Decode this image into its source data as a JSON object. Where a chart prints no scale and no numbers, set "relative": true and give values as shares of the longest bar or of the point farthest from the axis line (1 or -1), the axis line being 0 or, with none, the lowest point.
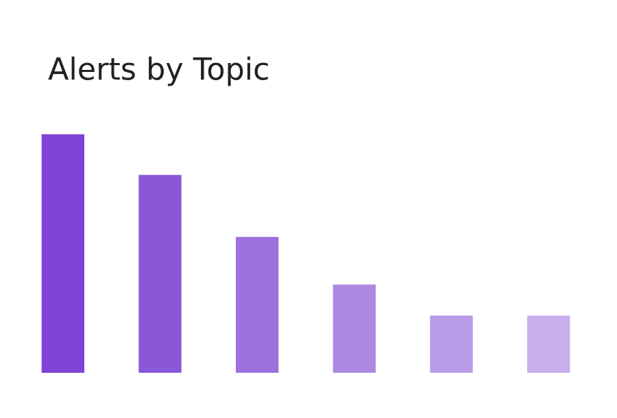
{
  "chart_data": {
    "type": "bar",
    "title": "Alerts by Topic",
    "relative": true,
    "categories": [
      null,
      null,
      null,
      null,
      null,
      null
    ],
    "values": [
      1,
      0.83,
      0.57,
      0.37,
      0.24,
      0.24
    ],
    "colors": [
      "#7f43d5",
      "#8b57d9",
      "#9c70dd",
      "#ac88e2",
      "#ba9be7",
      "#c8aeec"
    ],
    "grid": false,
    "legend": false
  }
}
